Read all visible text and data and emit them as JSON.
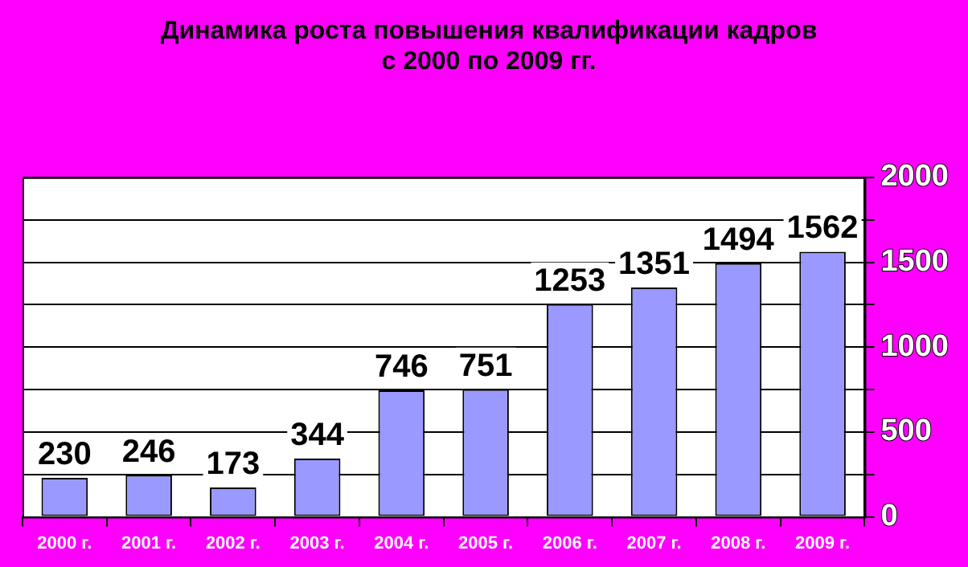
{
  "chart_data": {
    "type": "bar",
    "title": "Динамика роста повышения квалификации кадров\nс 2000 по 2009 гг.",
    "categories": [
      "2000 г.",
      "2001 г.",
      "2002 г.",
      "2003 г.",
      "2004 г.",
      "2005 г.",
      "2006 г.",
      "2007 г.",
      "2008 г.",
      "2009 г."
    ],
    "values": [
      230,
      246,
      173,
      344,
      746,
      751,
      1253,
      1351,
      1494,
      1562
    ],
    "color": "#9999ff",
    "ylim": [
      0,
      2000
    ],
    "yticks": [
      0,
      {
        "value": 250,
        "label": null
      },
      500,
      {
        "value": 750,
        "label": null
      },
      1000,
      {
        "value": 1250,
        "label": null
      },
      1500,
      {
        "value": 1750,
        "label": null
      },
      2000
    ],
    "grid": "y",
    "data_labels": true,
    "legend": false
  }
}
